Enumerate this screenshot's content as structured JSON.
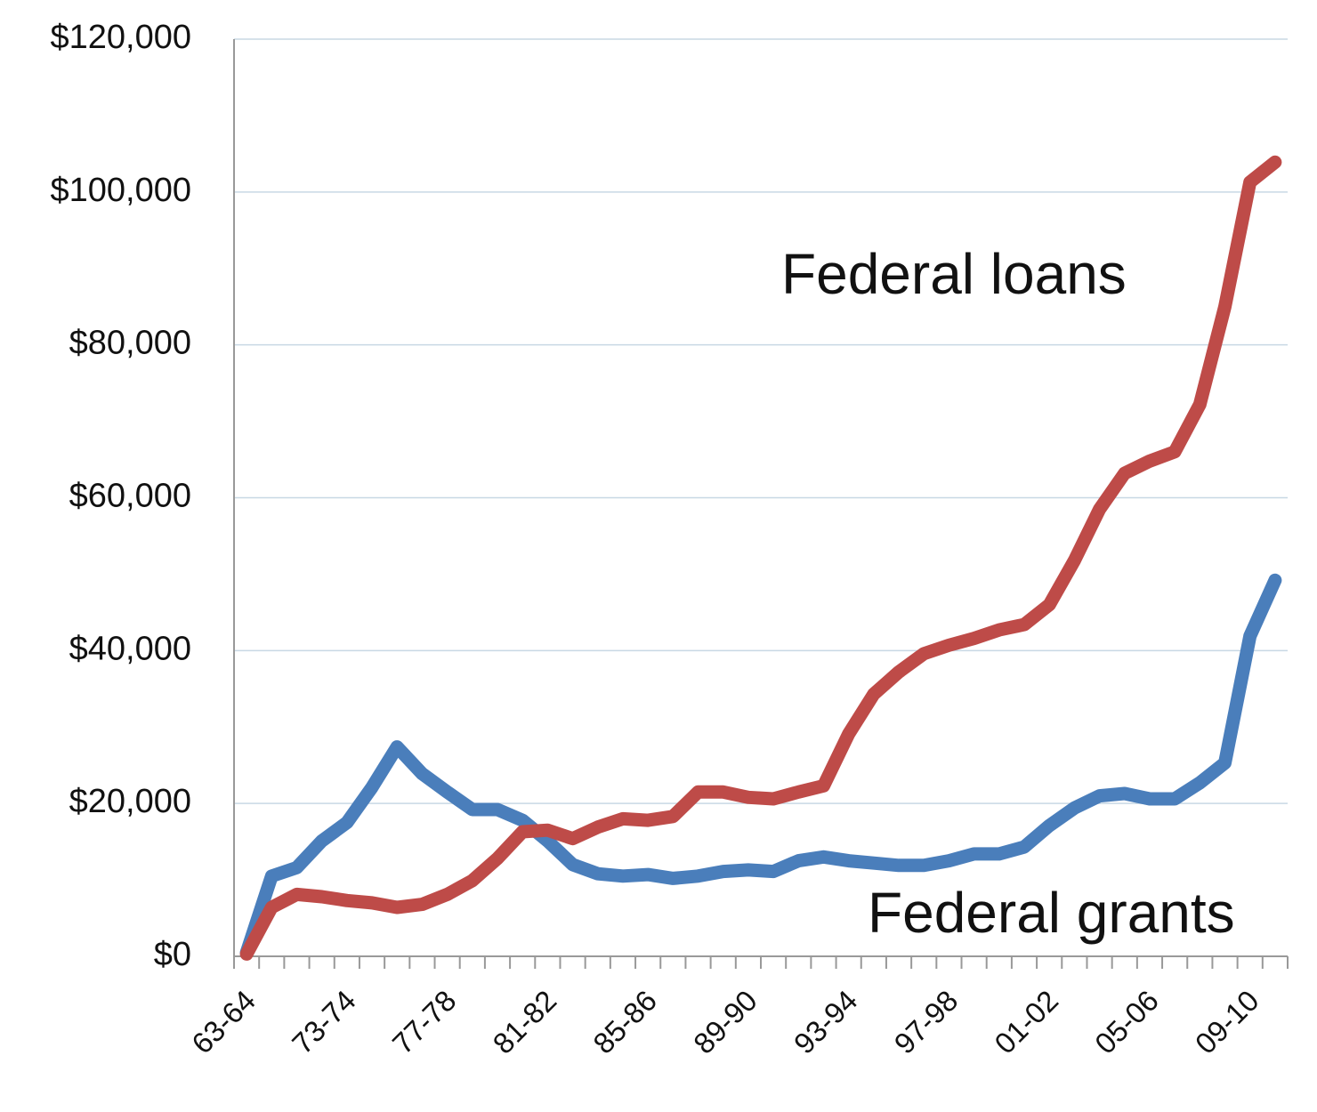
{
  "chart_data": {
    "type": "line",
    "categories": [
      "63-64",
      null,
      null,
      null,
      "73-74",
      null,
      null,
      null,
      "77-78",
      null,
      null,
      null,
      "81-82",
      null,
      null,
      null,
      "85-86",
      null,
      null,
      null,
      "89-90",
      null,
      null,
      null,
      "93-94",
      null,
      null,
      null,
      "97-98",
      null,
      null,
      null,
      "01-02",
      null,
      null,
      null,
      "05-06",
      null,
      null,
      null,
      "09-10",
      null
    ],
    "series": [
      {
        "name": "Federal grants",
        "color": "#4a7ebb",
        "values": [
          500,
          10500,
          11600,
          15100,
          17500,
          22100,
          27400,
          23900,
          21500,
          19200,
          19200,
          17800,
          15100,
          12000,
          10800,
          10500,
          10700,
          10200,
          10500,
          11100,
          11300,
          11100,
          12500,
          13000,
          12500,
          12200,
          11900,
          11900,
          12500,
          13400,
          13400,
          14300,
          17100,
          19400,
          21000,
          21300,
          20600,
          20600,
          22700,
          25300,
          41900,
          49200
        ]
      },
      {
        "name": "Federal loans",
        "color": "#be4b48",
        "values": [
          300,
          6400,
          8100,
          7800,
          7300,
          7000,
          6400,
          6800,
          8100,
          9900,
          12800,
          16300,
          16500,
          15400,
          16900,
          18000,
          17800,
          18300,
          21500,
          21500,
          20800,
          20600,
          21500,
          22300,
          29100,
          34300,
          37200,
          39600,
          40700,
          41600,
          42700,
          43400,
          46000,
          51800,
          58500,
          63200,
          64800,
          66000,
          72200,
          85000,
          101300,
          103900
        ]
      }
    ],
    "ylim": [
      0,
      120000
    ],
    "yticks": [
      {
        "value": 0,
        "label": "$0"
      },
      {
        "value": 20000,
        "label": "$20,000"
      },
      {
        "value": 40000,
        "label": "$40,000"
      },
      {
        "value": 60000,
        "label": "$60,000"
      },
      {
        "value": 80000,
        "label": "$80,000"
      },
      {
        "value": 100000,
        "label": "$100,000"
      },
      {
        "value": 120000,
        "label": "$120,000"
      }
    ],
    "grid": true
  }
}
